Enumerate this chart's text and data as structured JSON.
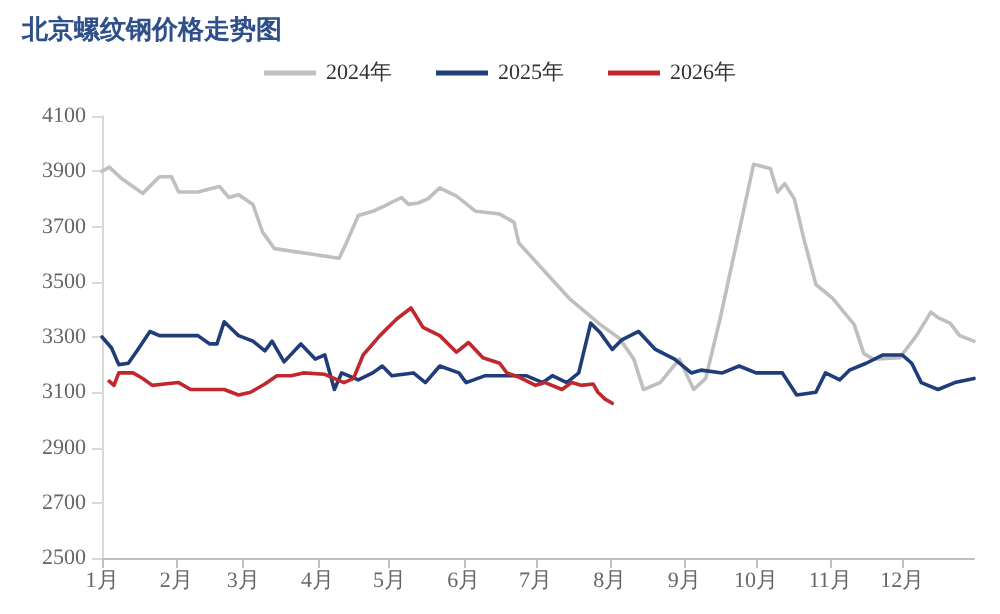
{
  "chart_data": {
    "type": "line",
    "title": "北京螺纹钢价格走势图",
    "xlim": [
      "--01-01",
      "--12-31"
    ],
    "xticks": [
      {
        "value": "--01-01",
        "label": "1月"
      },
      {
        "value": "--02-01",
        "label": "2月"
      },
      {
        "value": "--03-01",
        "label": "3月"
      },
      {
        "value": "--04-01",
        "label": "4月"
      },
      {
        "value": "--05-01",
        "label": "5月"
      },
      {
        "value": "--06-01",
        "label": "6月"
      },
      {
        "value": "--07-01",
        "label": "7月"
      },
      {
        "value": "--08-01",
        "label": "8月"
      },
      {
        "value": "--09-01",
        "label": "9月"
      },
      {
        "value": "--10-01",
        "label": "10月"
      },
      {
        "value": "--11-01",
        "label": "11月"
      },
      {
        "value": "--12-01",
        "label": "12月"
      }
    ],
    "ylim": [
      2500,
      4100
    ],
    "yticks": [
      2500,
      2700,
      2900,
      3100,
      3300,
      3500,
      3700,
      3900,
      4100
    ],
    "grid": false,
    "legend": "top",
    "marker": "none",
    "line_style": "solid",
    "series": [
      {
        "name": "2024年",
        "color": "#bfbfbf",
        "x": [
          "--01-01",
          "--01-04",
          "--01-09",
          "--01-18",
          "--01-25",
          "--01-30",
          "--02-02",
          "--02-10",
          "--02-19",
          "--02-23",
          "--02-27",
          "--03-05",
          "--03-09",
          "--03-14",
          "--04-10",
          "--04-13",
          "--04-18",
          "--04-24",
          "--04-29",
          "--05-06",
          "--05-09",
          "--05-13",
          "--05-17",
          "--05-22",
          "--05-29",
          "--06-06",
          "--06-16",
          "--06-22",
          "--06-24",
          "--07-15",
          "--07-28",
          "--08-05",
          "--08-11",
          "--08-15",
          "--08-22",
          "--08-30",
          "--09-05",
          "--09-10",
          "--09-16",
          "--09-30",
          "--10-07",
          "--10-10",
          "--10-13",
          "--10-17",
          "--10-21",
          "--10-26",
          "--11-02",
          "--11-11",
          "--11-15",
          "--11-19",
          "--11-30",
          "--12-07",
          "--12-13",
          "--12-16",
          "--12-21",
          "--12-25",
          "--12-31"
        ],
        "values": [
          3900,
          3915,
          3875,
          3820,
          3880,
          3880,
          3825,
          3825,
          3845,
          3805,
          3815,
          3780,
          3680,
          3620,
          3585,
          3640,
          3740,
          3755,
          3775,
          3805,
          3780,
          3785,
          3800,
          3840,
          3810,
          3755,
          3745,
          3715,
          3640,
          3440,
          3345,
          3295,
          3220,
          3110,
          3135,
          3220,
          3110,
          3150,
          3365,
          3925,
          3910,
          3825,
          3855,
          3800,
          3655,
          3490,
          3440,
          3345,
          3240,
          3220,
          3225,
          3305,
          3390,
          3370,
          3350,
          3305,
          3285
        ]
      },
      {
        "name": "2025年",
        "color": "#1f3d7a",
        "x": [
          "--01-01",
          "--01-05",
          "--01-08",
          "--01-12",
          "--01-16",
          "--01-21",
          "--01-25",
          "--02-10",
          "--02-15",
          "--02-18",
          "--02-21",
          "--02-24",
          "--02-27",
          "--03-05",
          "--03-10",
          "--03-13",
          "--03-18",
          "--03-25",
          "--03-31",
          "--04-04",
          "--04-08",
          "--04-11",
          "--04-18",
          "--04-24",
          "--04-28",
          "--05-02",
          "--05-11",
          "--05-16",
          "--05-22",
          "--05-30",
          "--06-02",
          "--06-10",
          "--06-16",
          "--06-27",
          "--07-04",
          "--07-08",
          "--07-14",
          "--07-19",
          "--07-24",
          "--07-28",
          "--08-02",
          "--08-06",
          "--08-13",
          "--08-20",
          "--08-28",
          "--09-04",
          "--09-08",
          "--09-17",
          "--09-24",
          "--10-01",
          "--10-12",
          "--10-18",
          "--10-26",
          "--10-30",
          "--11-05",
          "--11-09",
          "--11-16",
          "--11-23",
          "--12-01",
          "--12-05",
          "--12-09",
          "--12-16",
          "--12-23",
          "--12-31"
        ],
        "values": [
          3300,
          3260,
          3200,
          3205,
          3255,
          3320,
          3305,
          3305,
          3275,
          3275,
          3355,
          3330,
          3305,
          3285,
          3250,
          3285,
          3210,
          3275,
          3220,
          3235,
          3110,
          3170,
          3145,
          3170,
          3195,
          3160,
          3170,
          3135,
          3195,
          3170,
          3135,
          3160,
          3160,
          3160,
          3135,
          3160,
          3135,
          3170,
          3350,
          3315,
          3255,
          3290,
          3320,
          3255,
          3220,
          3170,
          3180,
          3170,
          3195,
          3170,
          3170,
          3090,
          3100,
          3170,
          3145,
          3180,
          3205,
          3235,
          3235,
          3205,
          3135,
          3110,
          3135,
          3150
        ]
      },
      {
        "name": "2026年",
        "color": "#c0282d",
        "x": [
          "--01-04",
          "--01-06",
          "--01-08",
          "--01-14",
          "--01-18",
          "--01-22",
          "--01-27",
          "--02-02",
          "--02-07",
          "--02-21",
          "--02-27",
          "--03-04",
          "--03-10",
          "--03-15",
          "--03-21",
          "--03-26",
          "--04-04",
          "--04-12",
          "--04-16",
          "--04-20",
          "--04-27",
          "--05-04",
          "--05-10",
          "--05-15",
          "--05-22",
          "--05-29",
          "--06-03",
          "--06-09",
          "--06-16",
          "--06-19",
          "--06-24",
          "--07-01",
          "--07-05",
          "--07-12",
          "--07-16",
          "--07-20",
          "--07-25",
          "--07-27",
          "--07-30",
          "--08-02"
        ],
        "values": [
          3140,
          3125,
          3170,
          3170,
          3150,
          3125,
          3130,
          3135,
          3110,
          3110,
          3090,
          3100,
          3130,
          3160,
          3160,
          3170,
          3165,
          3135,
          3150,
          3235,
          3305,
          3365,
          3405,
          3335,
          3305,
          3245,
          3280,
          3225,
          3205,
          3170,
          3155,
          3125,
          3135,
          3110,
          3135,
          3125,
          3130,
          3100,
          3075,
          3060
        ]
      }
    ]
  }
}
